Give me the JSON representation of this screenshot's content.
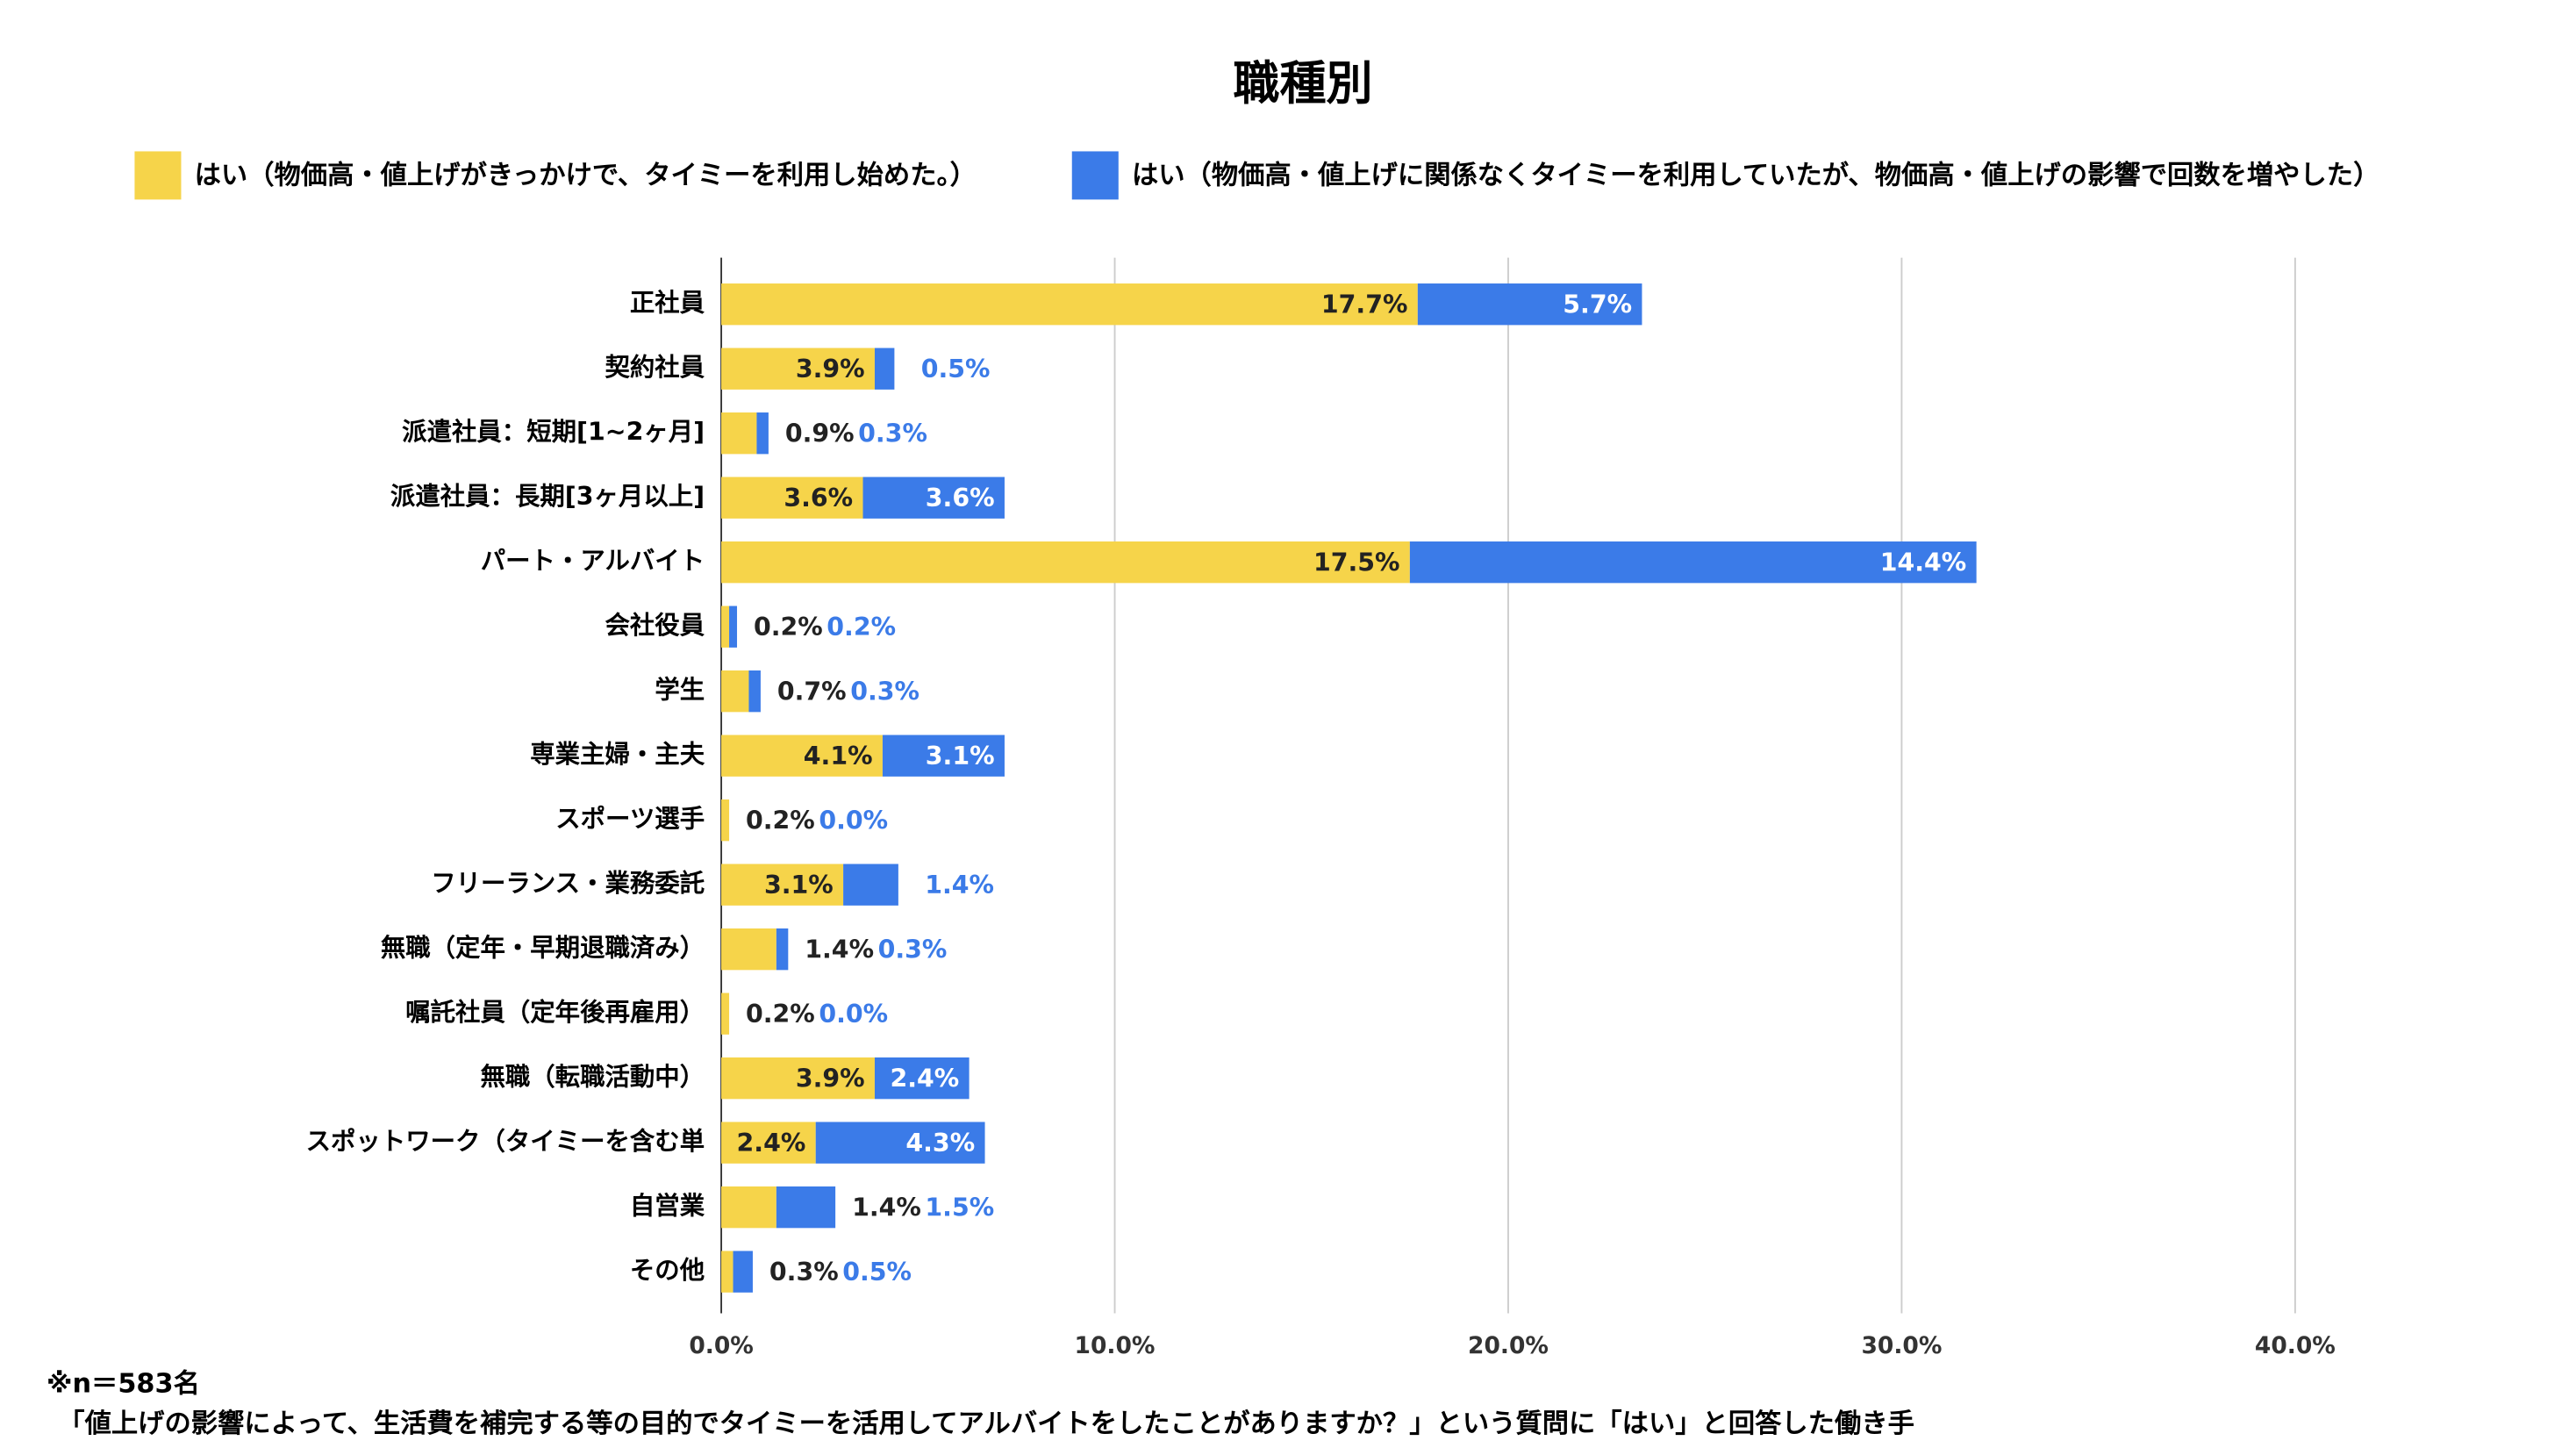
{
  "chart_data": {
    "type": "bar",
    "orientation": "horizontal",
    "stacked": true,
    "title": "職種別",
    "categories": [
      "正社員",
      "契約社員",
      "派遣社員：短期[1~2ヶ月]",
      "派遣社員：長期[3ヶ月以上]",
      "パート・アルバイト",
      "会社役員",
      "学生",
      "専業主婦・主夫",
      "スポーツ選手",
      "フリーランス・業務委託",
      "無職（定年・早期退職済み）",
      "嘱託社員（定年後再雇用）",
      "無職（転職活動中）",
      "スポットワーク（タイミーを含む単",
      "自営業",
      "その他"
    ],
    "series": [
      {
        "name": "はい（物価高・値上げがきっかけで、タイミーを利用し始めた。）",
        "color": "#f6d44a",
        "values": [
          17.7,
          3.9,
          0.9,
          3.6,
          17.5,
          0.2,
          0.7,
          4.1,
          0.2,
          3.1,
          1.4,
          0.2,
          3.9,
          2.4,
          1.4,
          0.3
        ],
        "value_labels": [
          "17.7%",
          "3.9%",
          "0.9%",
          "3.6%",
          "17.5%",
          "0.2%",
          "0.7%",
          "4.1%",
          "0.2%",
          "3.1%",
          "1.4%",
          "0.2%",
          "3.9%",
          "2.4%",
          "1.4%",
          "0.3%"
        ]
      },
      {
        "name": "はい（物価高・値上げに関係なくタイミーを利用していたが、物価高・値上げの影響で回数を増やした）",
        "color": "#3b7be8",
        "values": [
          5.7,
          0.5,
          0.3,
          3.6,
          14.4,
          0.2,
          0.3,
          3.1,
          0.0,
          1.4,
          0.3,
          0.0,
          2.4,
          4.3,
          1.5,
          0.5
        ],
        "value_labels": [
          "5.7%",
          "0.5%",
          "0.3%",
          "3.6%",
          "14.4%",
          "0.2%",
          "0.3%",
          "3.1%",
          "0.0%",
          "1.4%",
          "0.3%",
          "0.0%",
          "2.4%",
          "4.3%",
          "1.5%",
          "0.5%"
        ]
      }
    ],
    "xlim": [
      0,
      40
    ],
    "xticks": [
      {
        "value": 0,
        "label": "0.0%"
      },
      {
        "value": 10,
        "label": "10.0%"
      },
      {
        "value": 20,
        "label": "20.0%"
      },
      {
        "value": 30,
        "label": "30.0%"
      },
      {
        "value": 40,
        "label": "40.0%"
      }
    ],
    "grid": true,
    "legend": "top",
    "notes": [
      "※n＝583名",
      "「値上げの影響によって、生活費を補完する等の目的でタイミーを活用してアルバイトをしたことがありますか？」という質問に「はい」と回答した働き手"
    ]
  }
}
